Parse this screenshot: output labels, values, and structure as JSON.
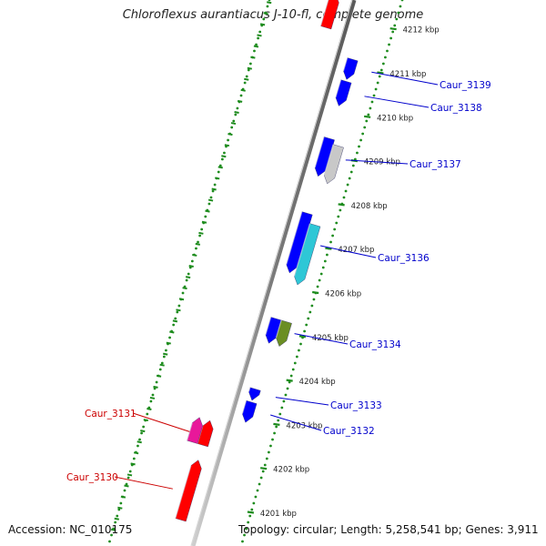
{
  "title": "Chloroflexus aurantiacus J-10-fl, complete genome",
  "footer": {
    "accession": "Accession: NC_010175",
    "summary": "Topology: circular; Length: 5,258,541 bp; Genes: 3,911"
  },
  "colors": {
    "backbone": "#7a7a7a",
    "tick_green": "#1e8c1e",
    "forward_red": "#ff0000",
    "reverse_blue": "#0000ff",
    "label_red": "#cc0000",
    "label_blue": "#0000cc"
  },
  "kbp_ticks": [
    {
      "kbp": 4201,
      "label": "4201 kbp"
    },
    {
      "kbp": 4202,
      "label": "4202 kbp"
    },
    {
      "kbp": 4203,
      "label": "4203 kbp"
    },
    {
      "kbp": 4204,
      "label": "4204 kbp"
    },
    {
      "kbp": 4205,
      "label": "4205 kbp"
    },
    {
      "kbp": 4206,
      "label": "4206 kbp"
    },
    {
      "kbp": 4207,
      "label": "4207 kbp"
    },
    {
      "kbp": 4208,
      "label": "4208 kbp"
    },
    {
      "kbp": 4209,
      "label": "4209 kbp"
    },
    {
      "kbp": 4210,
      "label": "4210 kbp"
    },
    {
      "kbp": 4211,
      "label": "4211 kbp"
    },
    {
      "kbp": 4212,
      "label": "4212 kbp"
    }
  ],
  "genes": [
    {
      "name": "Caur_3130",
      "strand": "+",
      "color": "#ff0000",
      "start_kbp": 4200.7,
      "end_kbp": 4201.9
    },
    {
      "name": "Caur_3131",
      "strand": "+",
      "color": "#ff0000",
      "start_kbp": 4202.4,
      "end_kbp": 4202.8
    },
    {
      "name": "",
      "strand": "+",
      "color": "#e8189a",
      "start_kbp": 4202.4,
      "end_kbp": 4202.8
    },
    {
      "name": "Caur_3132",
      "strand": "-",
      "color": "#0000ff",
      "start_kbp": 4203.3,
      "end_kbp": 4203.6
    },
    {
      "name": "Caur_3133",
      "strand": "-",
      "color": "#0000ff",
      "start_kbp": 4203.8,
      "end_kbp": 4203.9
    },
    {
      "name": "Caur_3134",
      "strand": "-",
      "color": "#0000ff",
      "start_kbp": 4205.1,
      "end_kbp": 4205.5
    },
    {
      "name": "",
      "strand": "-",
      "color": "#6b8e23",
      "start_kbp": 4205.1,
      "end_kbp": 4205.5
    },
    {
      "name": "Caur_3136",
      "strand": "-",
      "color": "#0000ff",
      "start_kbp": 4206.7,
      "end_kbp": 4207.9
    },
    {
      "name": "",
      "strand": "-",
      "color": "#2ec7d6",
      "start_kbp": 4206.5,
      "end_kbp": 4207.7
    },
    {
      "name": "Caur_3137",
      "strand": "-",
      "color": "#0000ff",
      "start_kbp": 4208.9,
      "end_kbp": 4209.6
    },
    {
      "name": "",
      "strand": "-",
      "color": "#c8c8c8",
      "start_kbp": 4208.8,
      "end_kbp": 4209.5
    },
    {
      "name": "Caur_3138",
      "strand": "-",
      "color": "#0000ff",
      "start_kbp": 4210.5,
      "end_kbp": 4210.9
    },
    {
      "name": "Caur_3139",
      "strand": "-",
      "color": "#0000ff",
      "start_kbp": 4211.1,
      "end_kbp": 4211.4
    },
    {
      "name": "",
      "strand": "+",
      "color": "#ff0000",
      "start_kbp": 4211.9,
      "end_kbp": 4212.5
    }
  ]
}
